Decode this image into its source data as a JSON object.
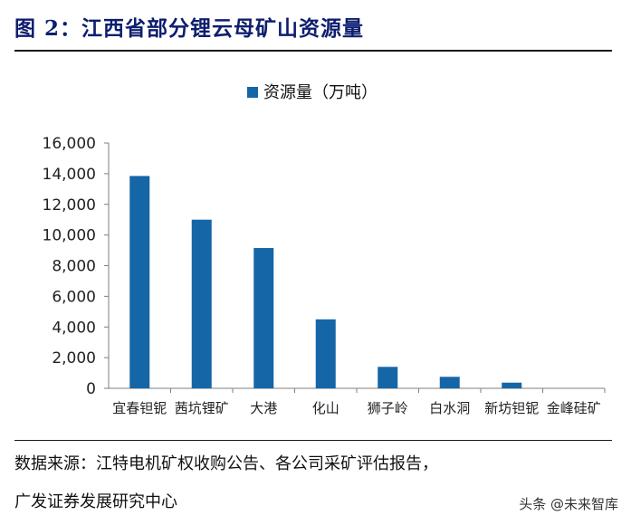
{
  "figure": {
    "title": "图 2：江西省部分锂云母矿山资源量",
    "source_line1": "数据来源：江特电机矿权收购公告、各公司采矿评估报告，",
    "source_line2": "广发证券发展研究中心",
    "watermark": "头条 @未来智库"
  },
  "colors": {
    "bar": "#1566a7",
    "axis": "#7f7f7f",
    "title": "#0d1e6e"
  },
  "chart_data": {
    "type": "bar",
    "categories": [
      "宜春钽铌",
      "茜坑锂矿",
      "大港",
      "化山",
      "狮子岭",
      "白水洞",
      "新坊钽铌",
      "金峰硅矿"
    ],
    "series": [
      {
        "name": "资源量（万吨）",
        "values": [
          13850,
          11000,
          9150,
          4500,
          1400,
          750,
          370,
          0
        ]
      }
    ],
    "yticks": [
      "0",
      "2,000",
      "4,000",
      "6,000",
      "8,000",
      "10,000",
      "12,000",
      "14,000",
      "16,000"
    ],
    "ylim": [
      0,
      16000
    ],
    "grid": false,
    "legend_position": "top-center"
  }
}
